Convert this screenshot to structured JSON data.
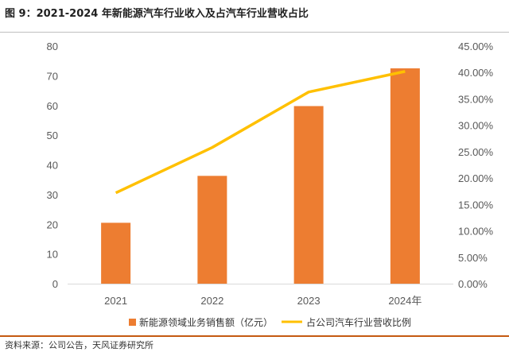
{
  "header": {
    "title": "图 9：2021-2024 年新能源汽车行业收入及占汽车行业营收占比"
  },
  "footer": {
    "source": "资料来源：公司公告，天风证券研究所"
  },
  "colors": {
    "bar": "#ed7d31",
    "line": "#ffc000",
    "axis": "#d9d9d9",
    "accent": "#c55a11"
  },
  "chart_data": {
    "type": "bar",
    "title": "2021-2024 年新能源汽车行业收入及占汽车行业营收占比",
    "categories": [
      "2021",
      "2022",
      "2023",
      "2024年"
    ],
    "series": [
      {
        "name": "新能源领域业务销售额（亿元）",
        "type": "bar",
        "axis": "left",
        "values": [
          20.5,
          36.3,
          59.8,
          72.5
        ]
      },
      {
        "name": "占公司汽车行业营收比例",
        "type": "line",
        "axis": "right",
        "values": [
          17.2,
          25.8,
          36.3,
          40.2
        ]
      }
    ],
    "ylim": [
      0,
      80
    ],
    "yticks": [
      "0",
      "10",
      "20",
      "30",
      "40",
      "50",
      "60",
      "70",
      "80"
    ],
    "y2lim": [
      0,
      45
    ],
    "y2ticks": [
      "0.00%",
      "5.00%",
      "10.00%",
      "15.00%",
      "20.00%",
      "25.00%",
      "30.00%",
      "35.00%",
      "40.00%",
      "45.00%"
    ],
    "legend_position": "bottom",
    "grid": false
  }
}
